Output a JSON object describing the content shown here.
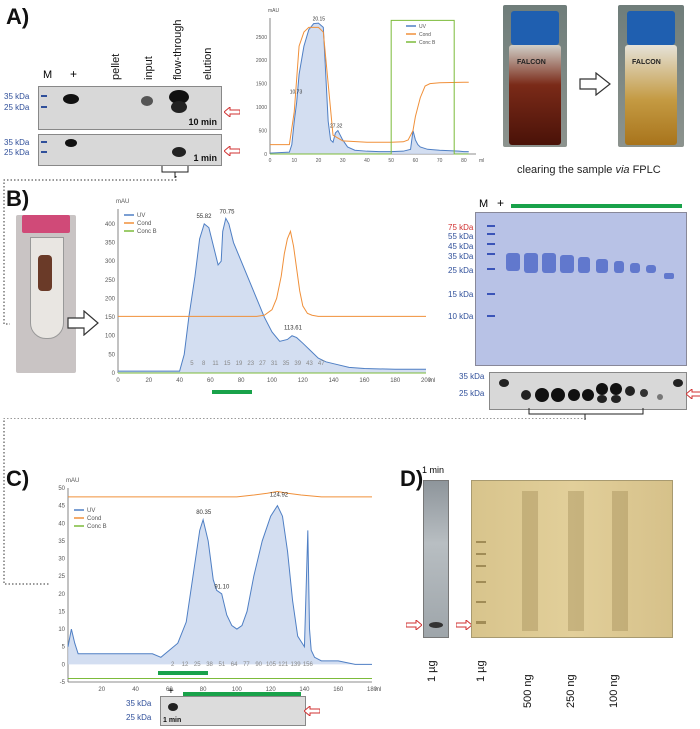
{
  "panels": {
    "A": {
      "letter": "A)",
      "lanes": [
        "M",
        "+",
        "pellet",
        "input",
        "flow-through",
        "elution"
      ],
      "markers_top": [
        "35 kDa",
        "25 kDa"
      ],
      "markers_bottom": [
        "35 kDa",
        "25 kDa"
      ],
      "time_top": "10 min",
      "time_bottom": "1 min",
      "caption": "clearing the sample ",
      "caption_italic": "via",
      "caption_end": " FPLC",
      "falcon_label": "FALCON"
    },
    "B": {
      "letter": "B)",
      "gel_lanes": [
        "M",
        "+"
      ],
      "gel_markers": [
        "75 kDa",
        "55 kDa",
        "45 kDa",
        "35 kDa",
        "25 kDa",
        "15 kDa",
        "10 kDa"
      ],
      "blot_markers": [
        "35 kDa",
        "25 kDa"
      ]
    },
    "C": {
      "letter": "C)",
      "blot_markers": [
        "35 kDa",
        "25 kDa"
      ],
      "blot_lane": "+",
      "blot_time": "1 min"
    },
    "D": {
      "letter": "D)",
      "time": "1 min",
      "lanes": [
        "1 µg",
        "1 µg",
        "500 ng",
        "250 ng",
        "100 ng"
      ]
    }
  },
  "chart_data": [
    {
      "type": "line",
      "panel": "A",
      "ylabel": "mAU",
      "legend": [
        "UV",
        "Cond",
        "Conc B"
      ],
      "legend_position": "top-right",
      "xlim": [
        0,
        85
      ],
      "ylim": [
        0,
        2900
      ],
      "yticks": [
        0,
        500,
        1000,
        1500,
        2000,
        2500
      ],
      "xticks": [
        0,
        10,
        20,
        30,
        40,
        50,
        60,
        70,
        80
      ],
      "xunit": "ml",
      "peak_labels": [
        {
          "x": 10.73,
          "y": 1250,
          "text": "10.73"
        },
        {
          "x": 20.15,
          "y": 2800,
          "text": "20.15"
        },
        {
          "x": 27.32,
          "y": 520,
          "text": "27.32"
        }
      ],
      "series": [
        {
          "name": "UV",
          "color": "#4f7fc4",
          "x": [
            0,
            8,
            9,
            10,
            11,
            12,
            14,
            16,
            18,
            20,
            22,
            23,
            24,
            25,
            26,
            27,
            28,
            30,
            32,
            35,
            40,
            45,
            50,
            55,
            58,
            59,
            60,
            61,
            62,
            65,
            70,
            78,
            80,
            82
          ],
          "y": [
            20,
            40,
            200,
            700,
            1100,
            1700,
            2300,
            2650,
            2780,
            2790,
            2700,
            1700,
            700,
            300,
            250,
            450,
            500,
            300,
            150,
            80,
            60,
            50,
            50,
            60,
            100,
            500,
            300,
            200,
            150,
            100,
            80,
            60,
            50,
            50
          ]
        },
        {
          "name": "Cond",
          "color": "#f0903a",
          "x": [
            0,
            8,
            10,
            12,
            14,
            16,
            18,
            20,
            22,
            24,
            26,
            30,
            40,
            50,
            55,
            57,
            59,
            60,
            62,
            64,
            66,
            70,
            80,
            82
          ],
          "y": [
            200,
            200,
            900,
            2300,
            2600,
            2700,
            2700,
            2700,
            2600,
            1500,
            400,
            280,
            250,
            250,
            260,
            300,
            500,
            800,
            1200,
            1450,
            1500,
            1520,
            1530,
            1530
          ]
        },
        {
          "name": "Conc B",
          "color": "#7cbb3a",
          "x": [
            0,
            50,
            50,
            76,
            76,
            82
          ],
          "y": [
            0,
            0,
            2850,
            2850,
            0,
            0
          ]
        }
      ]
    },
    {
      "type": "line",
      "panel": "B",
      "ylabel": "mAU",
      "legend": [
        "UV",
        "Cond",
        "Conc B"
      ],
      "legend_position": "top-left",
      "xlim": [
        0,
        200
      ],
      "ylim": [
        0,
        440
      ],
      "yticks": [
        0,
        50,
        100,
        150,
        200,
        250,
        300,
        350,
        400
      ],
      "xticks": [
        0,
        20,
        40,
        60,
        80,
        100,
        120,
        140,
        160,
        180,
        200
      ],
      "xunit": "ml",
      "fraction_labels": [
        "5",
        "8",
        "11",
        "15",
        "19",
        "23",
        "27",
        "31",
        "35",
        "39",
        "43",
        "47"
      ],
      "peak_labels": [
        {
          "x": 55.82,
          "y": 410,
          "text": "55.82"
        },
        {
          "x": 70.75,
          "y": 422,
          "text": "70.75"
        },
        {
          "x": 113.61,
          "y": 112,
          "text": "113.61"
        }
      ],
      "series": [
        {
          "name": "UV",
          "color": "#4f7fc4",
          "x": [
            0,
            40,
            43,
            46,
            50,
            53,
            56,
            59,
            62,
            65,
            67,
            68,
            70,
            72,
            75,
            80,
            85,
            90,
            95,
            100,
            105,
            110,
            113,
            116,
            120,
            125,
            130,
            135,
            140,
            150,
            160,
            180,
            200
          ],
          "y": [
            5,
            5,
            50,
            150,
            260,
            360,
            400,
            390,
            340,
            290,
            300,
            380,
            415,
            400,
            350,
            300,
            250,
            200,
            150,
            110,
            85,
            90,
            100,
            95,
            80,
            60,
            40,
            30,
            25,
            15,
            12,
            10,
            10
          ]
        },
        {
          "name": "Cond",
          "color": "#f0903a",
          "x": [
            0,
            90,
            95,
            100,
            103,
            106,
            108,
            110,
            112,
            114,
            116,
            118,
            120,
            123,
            126,
            130,
            200
          ],
          "y": [
            152,
            152,
            155,
            170,
            200,
            260,
            320,
            360,
            380,
            340,
            280,
            220,
            180,
            160,
            155,
            152,
            152
          ]
        },
        {
          "name": "Conc B",
          "color": "#7cbb3a",
          "x": [
            0,
            200
          ],
          "y": [
            0,
            0
          ]
        }
      ]
    },
    {
      "type": "line",
      "panel": "C",
      "ylabel": "mAU",
      "legend": [
        "UV",
        "Cond",
        "Conc B"
      ],
      "legend_position": "top-left",
      "xlim": [
        0,
        180
      ],
      "ylim": [
        -5,
        50
      ],
      "yticks": [
        -5,
        0,
        5,
        10,
        15,
        20,
        25,
        30,
        35,
        40,
        45,
        50
      ],
      "xticks": [
        20,
        40,
        60,
        80,
        100,
        120,
        140,
        160,
        180
      ],
      "xunit": "ml",
      "fraction_labels": [
        "2",
        "12",
        "25",
        "38",
        "51",
        "64",
        "77",
        "90",
        "105",
        "121",
        "139",
        "156"
      ],
      "peak_labels": [
        {
          "x": 80.35,
          "y": 42,
          "text": "80.35"
        },
        {
          "x": 91.1,
          "y": 21,
          "text": "91.10"
        },
        {
          "x": 124.92,
          "y": 47,
          "text": "124.92"
        }
      ],
      "series": [
        {
          "name": "UV",
          "color": "#4f7fc4",
          "x": [
            0,
            2,
            4,
            6,
            10,
            20,
            30,
            40,
            50,
            55,
            60,
            65,
            70,
            74,
            78,
            80,
            83,
            86,
            88,
            91,
            94,
            97,
            100,
            103,
            106,
            110,
            115,
            120,
            124,
            127,
            130,
            133,
            136,
            140,
            142,
            143,
            144,
            146,
            150,
            160,
            170,
            180
          ],
          "y": [
            5,
            10,
            6,
            3,
            3,
            3,
            3,
            3,
            3,
            2,
            4,
            6,
            12,
            25,
            38,
            41,
            35,
            24,
            21,
            20,
            14,
            11,
            10,
            11,
            15,
            25,
            35,
            42,
            45,
            42,
            32,
            18,
            8,
            5,
            38,
            10,
            4,
            2,
            1,
            1,
            0,
            0
          ]
        },
        {
          "name": "Cond",
          "color": "#f0903a",
          "x": [
            0,
            100,
            110,
            118,
            124,
            130,
            138,
            150,
            180
          ],
          "y": [
            47.5,
            47.5,
            48,
            48.5,
            49,
            48.5,
            48,
            47.5,
            47.5
          ]
        },
        {
          "name": "Conc B",
          "color": "#7cbb3a",
          "x": [
            0,
            180
          ],
          "y": [
            -4,
            -4
          ]
        }
      ]
    }
  ]
}
